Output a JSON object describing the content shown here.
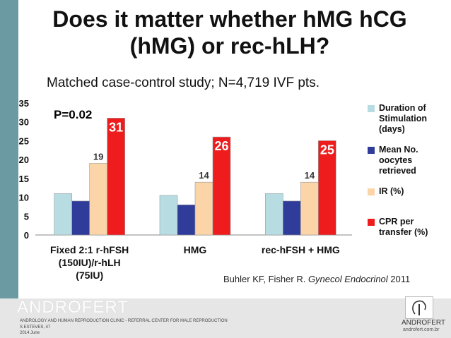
{
  "slide": {
    "title": "Does it matter whether hMG hCG (hMG) or rec-hLH?",
    "subtitle": "Matched case-control study; N=4,719 IVF pts.",
    "annotation": "P=0.02",
    "citation_authors": "Buhler KF, Fisher R. ",
    "citation_journal": "Gynecol Endocrinol",
    "citation_year": " 2011"
  },
  "chart_data": {
    "type": "bar",
    "categories": [
      "Fixed 2:1 r-hFSH (150IU)/r-hLH (75IU)",
      "HMG",
      "rec-hFSH + HMG"
    ],
    "category_lines": [
      [
        "Fixed 2:1 r-hFSH",
        "(150IU)/r-hLH",
        "(75IU)"
      ],
      [
        "HMG"
      ],
      [
        "rec-hFSH + HMG"
      ]
    ],
    "series": [
      {
        "name": "Duration of Stimulation (days)",
        "legend_lines": [
          "Duration of",
          "Stimulation",
          "(days)"
        ],
        "values": [
          11,
          10.5,
          11
        ],
        "color": "#b7dde2"
      },
      {
        "name": "Mean No. oocytes retrieved",
        "legend_lines": [
          "Mean No.",
          "oocytes",
          "retrieved"
        ],
        "values": [
          9,
          8,
          9
        ],
        "color": "#2f3c9a"
      },
      {
        "name": "IR (%)",
        "legend_lines": [
          "IR (%)"
        ],
        "values": [
          19,
          14,
          14
        ],
        "labels": [
          "19",
          "14",
          "14"
        ],
        "color": "#fbd4a8"
      },
      {
        "name": "CPR per transfer (%)",
        "legend_lines": [
          "CPR per",
          "transfer (%)"
        ],
        "values": [
          31,
          26,
          25
        ],
        "labels": [
          "31",
          "26",
          "25"
        ],
        "color": "#ee1c1c"
      }
    ],
    "ylim": [
      0,
      35
    ],
    "yticks": [
      "0",
      "5",
      "10",
      "15",
      "20",
      "25",
      "30",
      "35"
    ],
    "legend_position": "right"
  },
  "footer": {
    "brand": "ANDROFERT",
    "line1": "ANDROLOGY AND HUMAN REPRODUCTION CLINIC - REFERRAL CENTER FOR MALE REPRODUCTION",
    "line2": "S ESTEVES, 47",
    "line3": "2014 June",
    "logo_brand": "ANDROFERT",
    "logo_url": "androfert.com.br"
  }
}
